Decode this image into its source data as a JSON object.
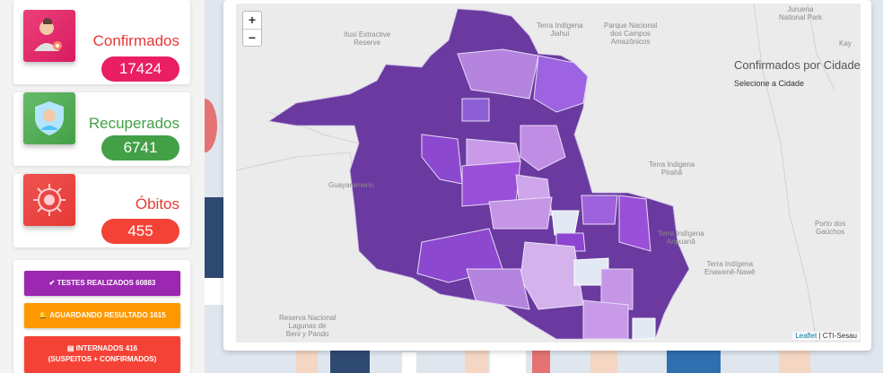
{
  "stats": {
    "confirmed": {
      "label": "Confirmados",
      "value": "17424",
      "color": "#e53935",
      "icon": "person-virus-icon"
    },
    "recovered": {
      "label": "Recuperados",
      "value": "6741",
      "color": "#43a047",
      "icon": "person-shield-icon"
    },
    "deaths": {
      "label": "Óbitos",
      "value": "455",
      "color": "#e53935",
      "icon": "virus-icon"
    }
  },
  "buttons": {
    "tests": {
      "label": "TESTES REALIZADOS 60883",
      "color": "#9c27b0"
    },
    "awaiting": {
      "label": "AGUARDANDO RESULTADO 1615",
      "color": "#ff9800"
    },
    "hospitalized": {
      "line1": "INTERNADOS 416",
      "line2": "(SUSPEITOS + CONFIRMADOS)",
      "color": "#f44336"
    }
  },
  "map": {
    "zoom_in": "+",
    "zoom_out": "−",
    "info_title": "Confirmados por Cidade",
    "info_subtitle": "Selecione a Cidade",
    "attribution_link": "Leaflet",
    "attribution_sep": " | ",
    "attribution_source": "CTI-Sesau",
    "labels": {
      "l1a": "Ituxi Extractive",
      "l1b": "Reserve",
      "l2a": "Terra Indígena",
      "l2b": "Jiahui",
      "l3a": "Parque Nacional",
      "l3b": "dos Campos",
      "l3c": "Amazônicos",
      "l4a": "Terra Indigena",
      "l4b": "Pirahã",
      "l5a": "Juruena",
      "l5b": "National Park",
      "l6": "Kay",
      "l7a": "Terra Indígena",
      "l7b": "Aripuanã",
      "l8a": "Porto dos",
      "l8b": "Gaúchos",
      "l9a": "Terra Indígena",
      "l9b": "Enawenê-Nawê",
      "l10a": "Reserva Nacional",
      "l10b": "Lagunas de",
      "l10c": "Beni y Pando",
      "l11": "Guayaramerin"
    }
  }
}
